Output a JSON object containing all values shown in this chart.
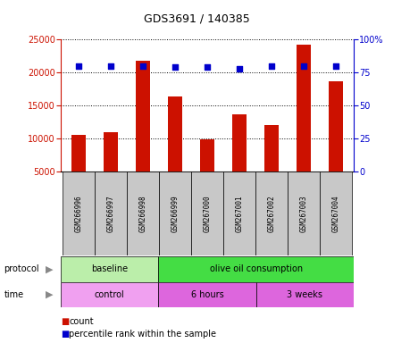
{
  "title": "GDS3691 / 140385",
  "samples": [
    "GSM266996",
    "GSM266997",
    "GSM266998",
    "GSM266999",
    "GSM267000",
    "GSM267001",
    "GSM267002",
    "GSM267003",
    "GSM267004"
  ],
  "counts": [
    10600,
    11000,
    21800,
    16400,
    9900,
    13600,
    12100,
    24200,
    18700
  ],
  "percentile_ranks": [
    80,
    80,
    80,
    79,
    79,
    78,
    80,
    80,
    80
  ],
  "bar_color": "#cc1100",
  "dot_color": "#0000cc",
  "ylim_left": [
    5000,
    25000
  ],
  "ylim_right": [
    0,
    100
  ],
  "yticks_left": [
    5000,
    10000,
    15000,
    20000,
    25000
  ],
  "yticks_right": [
    0,
    25,
    50,
    75,
    100
  ],
  "protocol_groups": [
    {
      "label": "baseline",
      "start": 0,
      "end": 3,
      "color": "#bbeeaa"
    },
    {
      "label": "olive oil consumption",
      "start": 3,
      "end": 9,
      "color": "#44dd44"
    }
  ],
  "time_groups": [
    {
      "label": "control",
      "start": 0,
      "end": 3,
      "color": "#f0a0f0"
    },
    {
      "label": "6 hours",
      "start": 3,
      "end": 6,
      "color": "#dd66dd"
    },
    {
      "label": "3 weeks",
      "start": 6,
      "end": 9,
      "color": "#dd66dd"
    }
  ],
  "legend_count_label": "count",
  "legend_pct_label": "percentile rank within the sample",
  "background_color": "#ffffff",
  "left_axis_color": "#cc1100",
  "right_axis_color": "#0000cc",
  "tick_area_color": "#c8c8c8"
}
